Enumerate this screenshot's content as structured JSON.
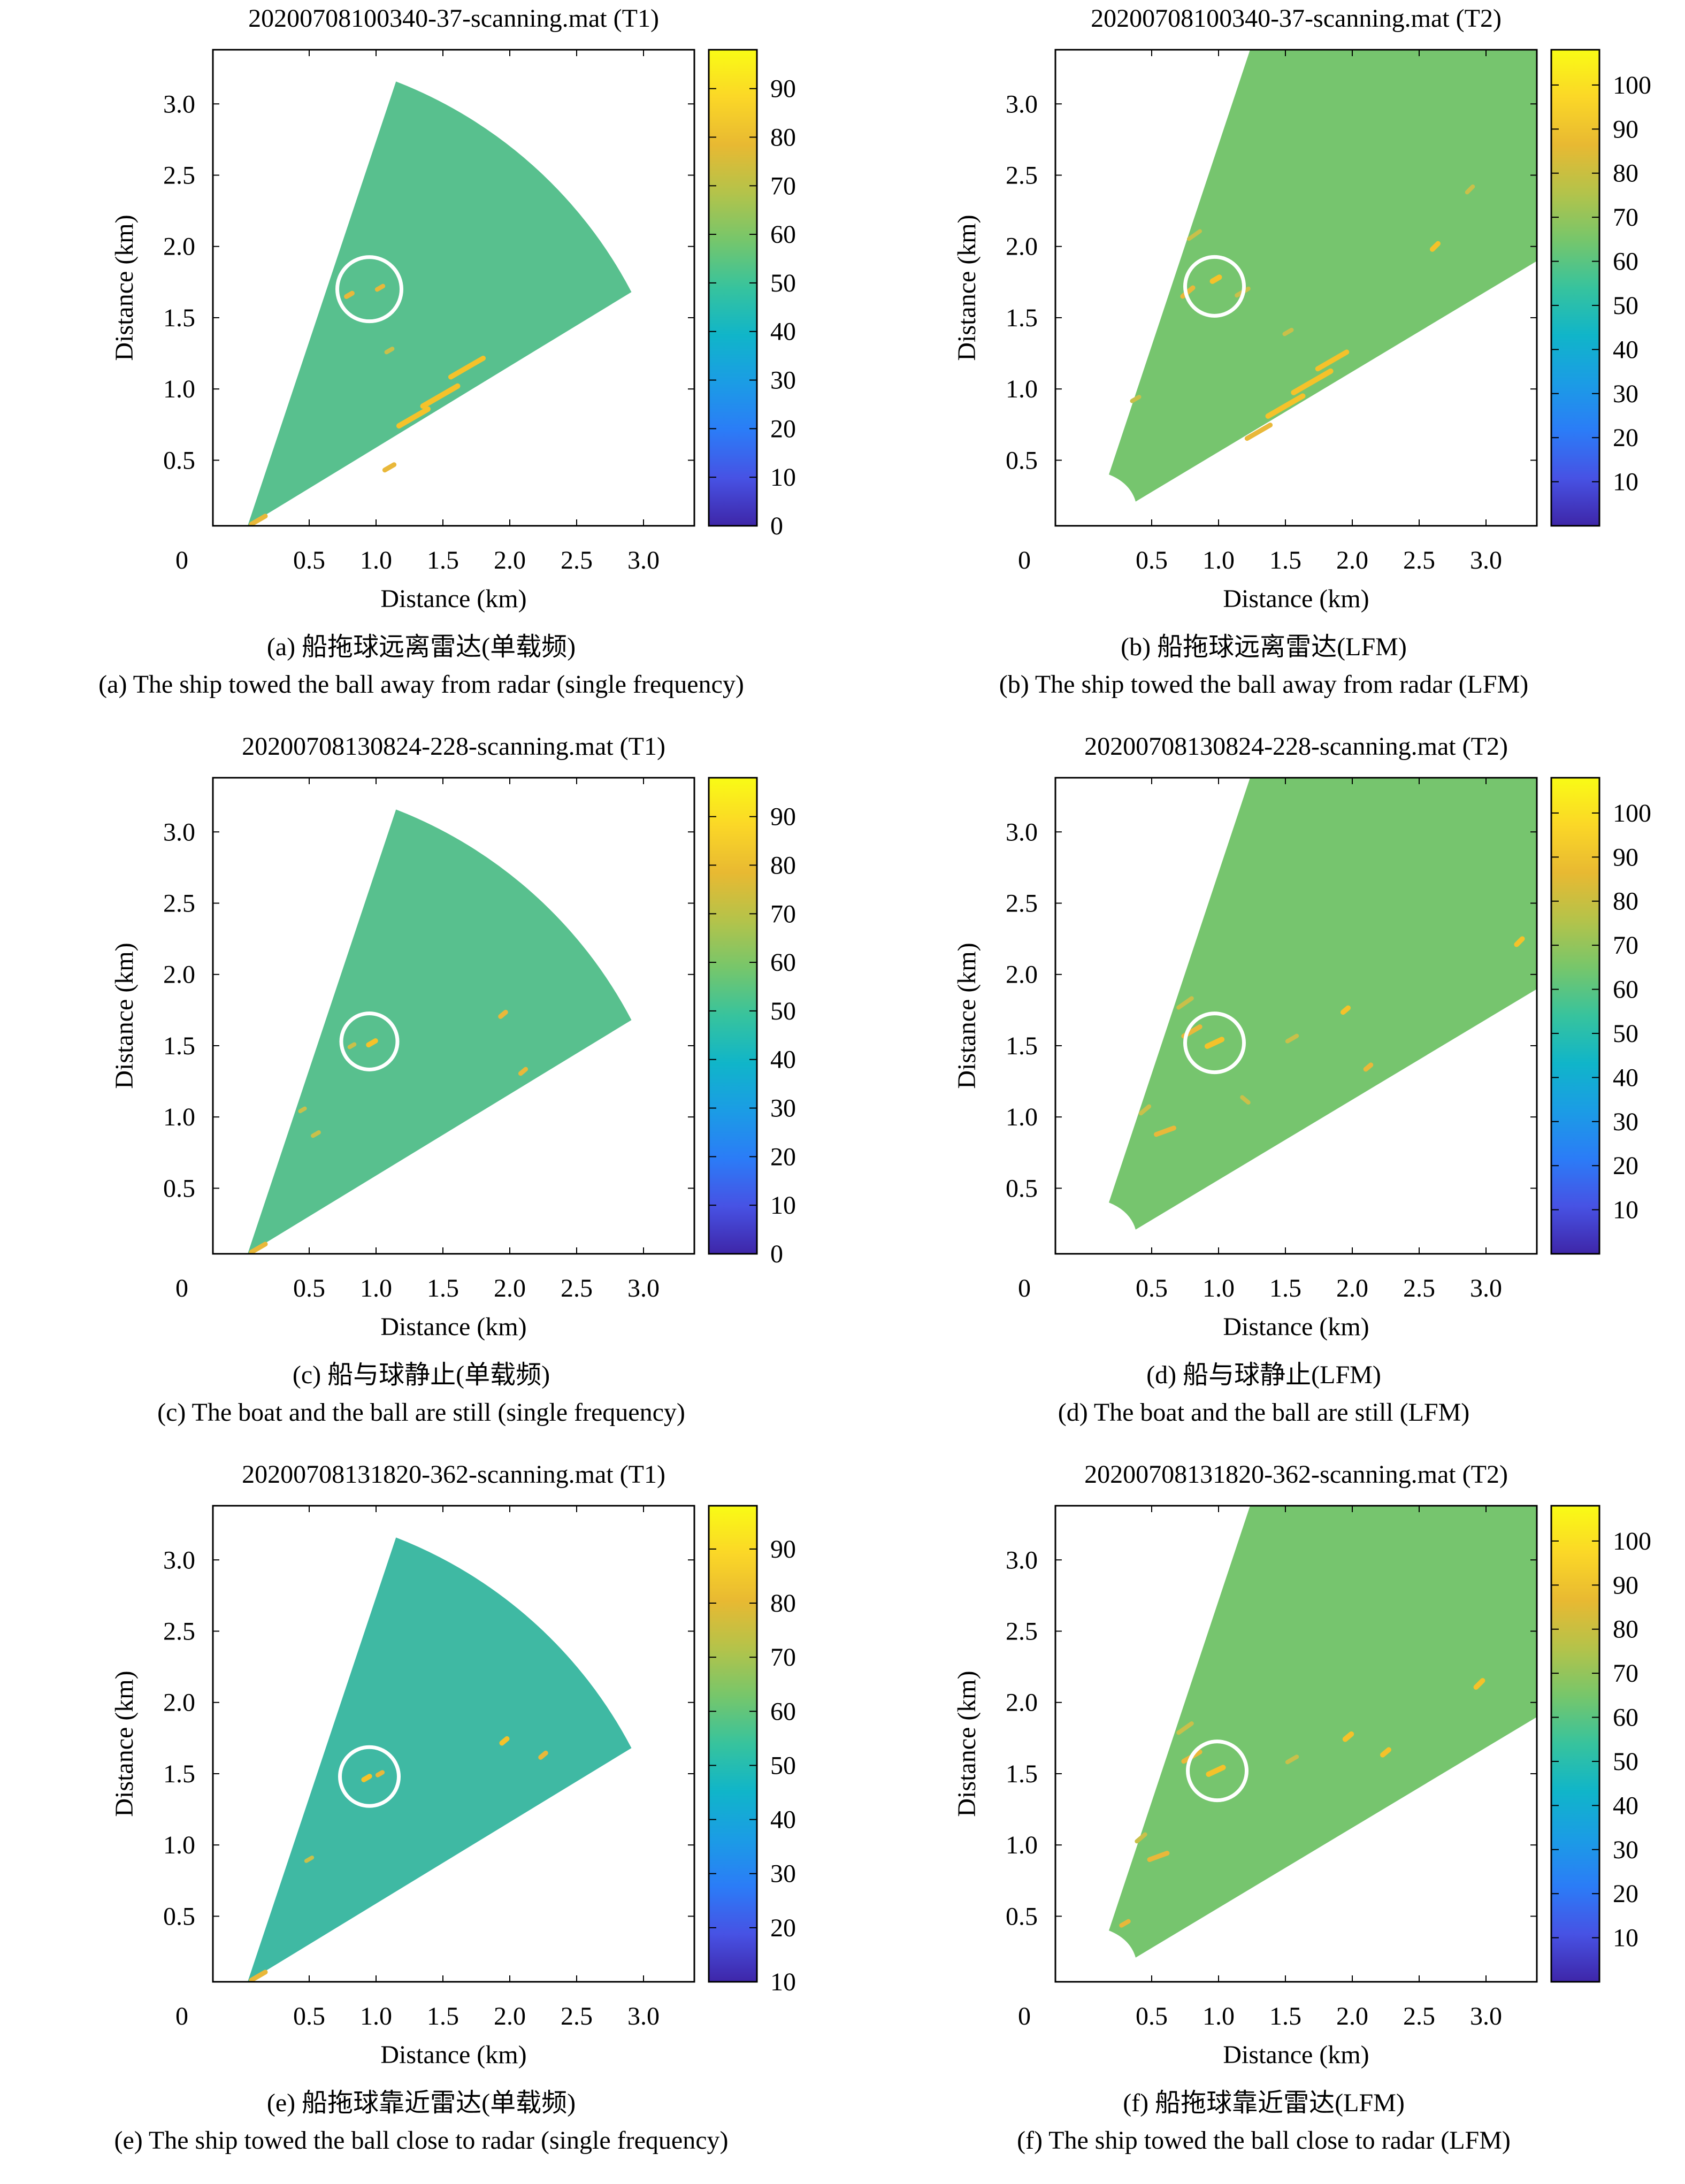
{
  "chart_data": [
    {
      "id": "a",
      "type": "heatmap",
      "title": "20200708100340-37-scanning.mat (T1)",
      "xlabel": "Distance (km)",
      "ylabel": "Distance (km)",
      "xticks": [
        "0",
        "0.5",
        "1.0",
        "1.5",
        "2.0",
        "2.5",
        "3.0"
      ],
      "yticks": [
        "0.5",
        "1.0",
        "1.5",
        "2.0",
        "2.5",
        "3.0"
      ],
      "xlim": [
        -0.22,
        3.38
      ],
      "ylim": [
        0.04,
        3.38
      ],
      "colorbar_ticks": [
        "0",
        "10",
        "20",
        "30",
        "40",
        "50",
        "60",
        "70",
        "80",
        "90"
      ],
      "colorbar_range": [
        0,
        98
      ],
      "sector": "near",
      "background_color": "#58c08e",
      "circle": {
        "x": 0.95,
        "y": 1.7,
        "r": 0.24
      },
      "returns": [
        {
          "x": 0.8,
          "y": 1.66,
          "len": 0.05,
          "angle": 30,
          "strength": 0.8
        },
        {
          "x": 1.03,
          "y": 1.71,
          "len": 0.05,
          "angle": 30,
          "strength": 0.7
        },
        {
          "x": 1.1,
          "y": 0.45,
          "len": 0.08,
          "angle": 30,
          "strength": 0.8
        },
        {
          "x": 1.28,
          "y": 0.8,
          "len": 0.25,
          "angle": 30,
          "strength": 1.0
        },
        {
          "x": 1.48,
          "y": 0.95,
          "len": 0.3,
          "angle": 30,
          "strength": 1.0
        },
        {
          "x": 1.68,
          "y": 1.15,
          "len": 0.28,
          "angle": 30,
          "strength": 0.9
        },
        {
          "x": 1.1,
          "y": 1.27,
          "len": 0.05,
          "angle": 30,
          "strength": 0.6
        },
        {
          "x": 0.12,
          "y": 0.08,
          "len": 0.12,
          "angle": 30,
          "strength": 0.8
        }
      ],
      "caption_cn": "(a) 船拖球远离雷达(单载频)",
      "caption_en": "(a) The ship towed the ball away from radar (single frequency)"
    },
    {
      "id": "b",
      "type": "heatmap",
      "title": "20200708100340-37-scanning.mat (T2)",
      "xlabel": "Distance (km)",
      "ylabel": "Distance (km)",
      "xticks": [
        "0",
        "0.5",
        "1.0",
        "1.5",
        "2.0",
        "2.5",
        "3.0"
      ],
      "yticks": [
        "0.5",
        "1.0",
        "1.5",
        "2.0",
        "2.5",
        "3.0"
      ],
      "xlim": [
        -0.22,
        3.38
      ],
      "ylim": [
        0.04,
        3.38
      ],
      "colorbar_ticks": [
        "10",
        "20",
        "30",
        "40",
        "50",
        "60",
        "70",
        "80",
        "90",
        "100"
      ],
      "colorbar_range": [
        0,
        108
      ],
      "sector": "far",
      "background_color": "#76c56e",
      "circle": {
        "x": 0.97,
        "y": 1.72,
        "r": 0.22
      },
      "returns": [
        {
          "x": 0.98,
          "y": 1.77,
          "len": 0.06,
          "angle": 30,
          "strength": 1.0
        },
        {
          "x": 0.77,
          "y": 1.68,
          "len": 0.1,
          "angle": 40,
          "strength": 0.8
        },
        {
          "x": 0.82,
          "y": 2.08,
          "len": 0.1,
          "angle": 35,
          "strength": 0.5
        },
        {
          "x": 2.62,
          "y": 2.0,
          "len": 0.06,
          "angle": 45,
          "strength": 0.9
        },
        {
          "x": 2.88,
          "y": 2.4,
          "len": 0.06,
          "angle": 45,
          "strength": 0.6
        },
        {
          "x": 1.5,
          "y": 0.88,
          "len": 0.3,
          "angle": 30,
          "strength": 1.0
        },
        {
          "x": 1.7,
          "y": 1.05,
          "len": 0.32,
          "angle": 30,
          "strength": 1.0
        },
        {
          "x": 1.85,
          "y": 1.2,
          "len": 0.25,
          "angle": 30,
          "strength": 0.9
        },
        {
          "x": 1.3,
          "y": 0.7,
          "len": 0.2,
          "angle": 30,
          "strength": 0.8
        },
        {
          "x": 1.52,
          "y": 1.4,
          "len": 0.06,
          "angle": 30,
          "strength": 0.6
        },
        {
          "x": 0.38,
          "y": 0.93,
          "len": 0.06,
          "angle": 30,
          "strength": 0.6
        },
        {
          "x": 1.18,
          "y": 1.68,
          "len": 0.1,
          "angle": 30,
          "strength": 0.6
        }
      ],
      "caption_cn": "(b) 船拖球远离雷达(LFM)",
      "caption_en": "(b) The ship towed the ball away from radar (LFM)"
    },
    {
      "id": "c",
      "type": "heatmap",
      "title": "20200708130824-228-scanning.mat (T1)",
      "xlabel": "Distance (km)",
      "ylabel": "Distance (km)",
      "xticks": [
        "0",
        "0.5",
        "1.0",
        "1.5",
        "2.0",
        "2.5",
        "3.0"
      ],
      "yticks": [
        "0.5",
        "1.0",
        "1.5",
        "2.0",
        "2.5",
        "3.0"
      ],
      "xlim": [
        -0.22,
        3.38
      ],
      "ylim": [
        0.04,
        3.38
      ],
      "colorbar_ticks": [
        "0",
        "10",
        "20",
        "30",
        "40",
        "50",
        "60",
        "70",
        "80",
        "90"
      ],
      "colorbar_range": [
        0,
        98
      ],
      "sector": "near",
      "background_color": "#58c08e",
      "circle": {
        "x": 0.95,
        "y": 1.53,
        "r": 0.21
      },
      "returns": [
        {
          "x": 0.97,
          "y": 1.52,
          "len": 0.06,
          "angle": 30,
          "strength": 0.9
        },
        {
          "x": 0.82,
          "y": 1.5,
          "len": 0.04,
          "angle": 30,
          "strength": 0.6
        },
        {
          "x": 1.95,
          "y": 1.72,
          "len": 0.05,
          "angle": 40,
          "strength": 0.8
        },
        {
          "x": 2.1,
          "y": 1.32,
          "len": 0.05,
          "angle": 40,
          "strength": 0.7
        },
        {
          "x": 0.55,
          "y": 0.88,
          "len": 0.05,
          "angle": 30,
          "strength": 0.6
        },
        {
          "x": 0.12,
          "y": 0.08,
          "len": 0.12,
          "angle": 30,
          "strength": 0.8
        },
        {
          "x": 0.45,
          "y": 1.05,
          "len": 0.04,
          "angle": 30,
          "strength": 0.5
        }
      ],
      "caption_cn": "(c) 船与球静止(单载频)",
      "caption_en": "(c) The boat and the ball are still (single frequency)"
    },
    {
      "id": "d",
      "type": "heatmap",
      "title": "20200708130824-228-scanning.mat (T2)",
      "xlabel": "Distance (km)",
      "ylabel": "Distance (km)",
      "xticks": [
        "0",
        "0.5",
        "1.0",
        "1.5",
        "2.0",
        "2.5",
        "3.0"
      ],
      "yticks": [
        "0.5",
        "1.0",
        "1.5",
        "2.0",
        "2.5",
        "3.0"
      ],
      "xlim": [
        -0.22,
        3.38
      ],
      "ylim": [
        0.04,
        3.38
      ],
      "colorbar_ticks": [
        "10",
        "20",
        "30",
        "40",
        "50",
        "60",
        "70",
        "80",
        "90",
        "100"
      ],
      "colorbar_range": [
        0,
        108
      ],
      "sector": "far",
      "background_color": "#76c56e",
      "circle": {
        "x": 0.97,
        "y": 1.52,
        "r": 0.22
      },
      "returns": [
        {
          "x": 0.97,
          "y": 1.52,
          "len": 0.12,
          "angle": 25,
          "strength": 1.0
        },
        {
          "x": 0.8,
          "y": 1.6,
          "len": 0.14,
          "angle": 30,
          "strength": 0.8
        },
        {
          "x": 0.75,
          "y": 1.8,
          "len": 0.12,
          "angle": 35,
          "strength": 0.6
        },
        {
          "x": 0.6,
          "y": 0.9,
          "len": 0.14,
          "angle": 20,
          "strength": 0.8
        },
        {
          "x": 0.45,
          "y": 1.05,
          "len": 0.08,
          "angle": 40,
          "strength": 0.6
        },
        {
          "x": 1.95,
          "y": 1.75,
          "len": 0.05,
          "angle": 40,
          "strength": 0.9
        },
        {
          "x": 2.12,
          "y": 1.35,
          "len": 0.05,
          "angle": 40,
          "strength": 0.8
        },
        {
          "x": 3.25,
          "y": 2.23,
          "len": 0.06,
          "angle": 45,
          "strength": 0.9
        },
        {
          "x": 1.55,
          "y": 1.55,
          "len": 0.08,
          "angle": 30,
          "strength": 0.6
        },
        {
          "x": 1.2,
          "y": 1.12,
          "len": 0.06,
          "angle": -40,
          "strength": 0.6
        }
      ],
      "caption_cn": "(d) 船与球静止(LFM)",
      "caption_en": "(d) The boat and the ball are still (LFM)"
    },
    {
      "id": "e",
      "type": "heatmap",
      "title": "20200708131820-362-scanning.mat (T1)",
      "xlabel": "Distance (km)",
      "ylabel": "Distance (km)",
      "xticks": [
        "0",
        "0.5",
        "1.0",
        "1.5",
        "2.0",
        "2.5",
        "3.0"
      ],
      "yticks": [
        "0.5",
        "1.0",
        "1.5",
        "2.0",
        "2.5",
        "3.0"
      ],
      "xlim": [
        -0.22,
        3.38
      ],
      "ylim": [
        0.04,
        3.38
      ],
      "colorbar_ticks": [
        "10",
        "20",
        "30",
        "40",
        "50",
        "60",
        "70",
        "80",
        "90"
      ],
      "colorbar_range": [
        10,
        98
      ],
      "sector": "near",
      "background_color": "#3fb9a3",
      "circle": {
        "x": 0.95,
        "y": 1.48,
        "r": 0.22
      },
      "returns": [
        {
          "x": 0.93,
          "y": 1.47,
          "len": 0.05,
          "angle": 30,
          "strength": 0.9
        },
        {
          "x": 1.03,
          "y": 1.5,
          "len": 0.04,
          "angle": 30,
          "strength": 0.7
        },
        {
          "x": 1.96,
          "y": 1.73,
          "len": 0.05,
          "angle": 40,
          "strength": 0.9
        },
        {
          "x": 2.25,
          "y": 1.63,
          "len": 0.05,
          "angle": 40,
          "strength": 0.8
        },
        {
          "x": 0.5,
          "y": 0.9,
          "len": 0.05,
          "angle": 30,
          "strength": 0.5
        },
        {
          "x": 0.12,
          "y": 0.08,
          "len": 0.12,
          "angle": 30,
          "strength": 0.8
        }
      ],
      "caption_cn": "(e) 船拖球靠近雷达(单载频)",
      "caption_en": "(e) The ship towed the ball close to radar (single frequency)"
    },
    {
      "id": "f",
      "type": "heatmap",
      "title": "20200708131820-362-scanning.mat (T2)",
      "xlabel": "Distance (km)",
      "ylabel": "Distance (km)",
      "xticks": [
        "0",
        "0.5",
        "1.0",
        "1.5",
        "2.0",
        "2.5",
        "3.0"
      ],
      "yticks": [
        "0.5",
        "1.0",
        "1.5",
        "2.0",
        "2.5",
        "3.0"
      ],
      "xlim": [
        -0.22,
        3.38
      ],
      "ylim": [
        0.04,
        3.38
      ],
      "colorbar_ticks": [
        "10",
        "20",
        "30",
        "40",
        "50",
        "60",
        "70",
        "80",
        "90",
        "100"
      ],
      "colorbar_range": [
        0,
        108
      ],
      "sector": "far",
      "background_color": "#76c56e",
      "circle": {
        "x": 0.99,
        "y": 1.52,
        "r": 0.22
      },
      "returns": [
        {
          "x": 0.98,
          "y": 1.52,
          "len": 0.12,
          "angle": 25,
          "strength": 1.0
        },
        {
          "x": 0.8,
          "y": 1.62,
          "len": 0.14,
          "angle": 30,
          "strength": 0.8
        },
        {
          "x": 0.75,
          "y": 1.82,
          "len": 0.12,
          "angle": 35,
          "strength": 0.6
        },
        {
          "x": 0.55,
          "y": 0.92,
          "len": 0.14,
          "angle": 20,
          "strength": 0.8
        },
        {
          "x": 0.42,
          "y": 1.05,
          "len": 0.08,
          "angle": 40,
          "strength": 0.6
        },
        {
          "x": 1.97,
          "y": 1.76,
          "len": 0.06,
          "angle": 40,
          "strength": 1.0
        },
        {
          "x": 2.25,
          "y": 1.65,
          "len": 0.06,
          "angle": 40,
          "strength": 0.9
        },
        {
          "x": 2.95,
          "y": 2.13,
          "len": 0.07,
          "angle": 45,
          "strength": 0.9
        },
        {
          "x": 1.55,
          "y": 1.6,
          "len": 0.08,
          "angle": 30,
          "strength": 0.6
        },
        {
          "x": 0.3,
          "y": 0.45,
          "len": 0.06,
          "angle": 30,
          "strength": 0.7
        }
      ],
      "caption_cn": "(f) 船拖球靠近雷达(LFM)",
      "caption_en": "(f) The ship towed the ball close to radar (LFM)"
    }
  ]
}
